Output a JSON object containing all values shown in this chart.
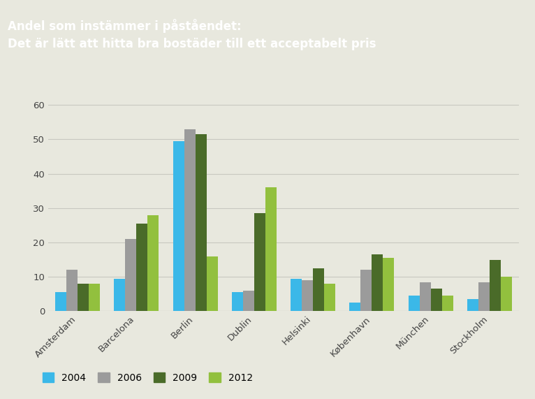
{
  "title_line1": "Andel som instämmer i påståendet:",
  "title_line2": "Det är lätt att hitta bra bostäder till ett acceptabelt pris",
  "categories": [
    "Amsterdam",
    "Barcelona",
    "Berlin",
    "Dublin",
    "Helsinki",
    "København",
    "München",
    "Stockholm"
  ],
  "series": {
    "2004": [
      5.5,
      9.5,
      49.5,
      5.5,
      9.5,
      2.5,
      4.5,
      3.5
    ],
    "2006": [
      12,
      21,
      53,
      6,
      9,
      12,
      8.5,
      8.5
    ],
    "2009": [
      8,
      25.5,
      51.5,
      28.5,
      12.5,
      16.5,
      6.5,
      15
    ],
    "2012": [
      8,
      28,
      16,
      36,
      8,
      15.5,
      4.5,
      10
    ]
  },
  "colors": {
    "2004": "#3BB8E8",
    "2006": "#9B9B9B",
    "2009": "#4A6B29",
    "2012": "#92C03E"
  },
  "legend_labels": [
    "2004",
    "2006",
    "2009",
    "2012"
  ],
  "ylim": [
    0,
    65
  ],
  "yticks": [
    0,
    10,
    20,
    30,
    40,
    50,
    60
  ],
  "background_color": "#E8E8DE",
  "title_bg_color": "#8C8480",
  "title_text_color": "#FFFFFF",
  "grid_color": "#C8C8C0",
  "bar_width": 0.19,
  "title_fontsize": 12,
  "tick_fontsize": 9.5,
  "legend_fontsize": 10
}
